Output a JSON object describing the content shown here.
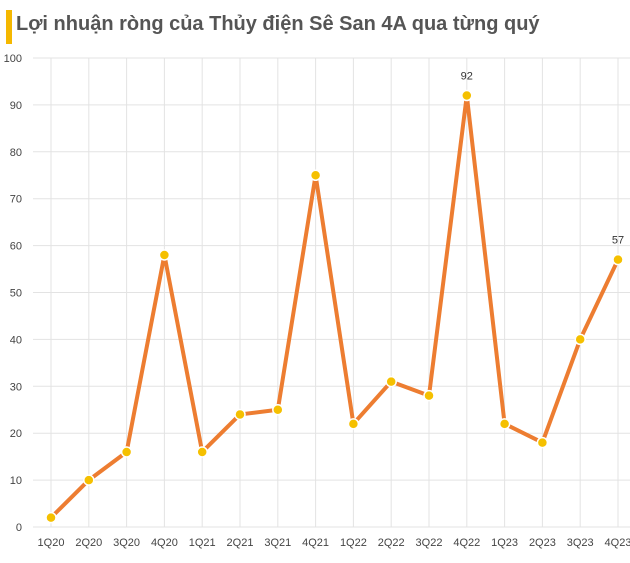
{
  "title": "Lợi nhuận ròng của Thủy điện Sê San 4A qua từng quý",
  "colors": {
    "accent_bar": "#f5b800",
    "line": "#ed7d31",
    "marker": "#f5c000",
    "marker_edge": "#ffffff",
    "grid": "#e3e3e3"
  },
  "chart_data": {
    "type": "line",
    "title": "Lợi nhuận ròng của Thủy điện Sê San 4A qua từng quý",
    "xlabel": "",
    "ylabel": "",
    "ylim": [
      0,
      100
    ],
    "yticks": [
      0,
      10,
      20,
      30,
      40,
      50,
      60,
      70,
      80,
      90,
      100
    ],
    "grid": true,
    "categories": [
      "1Q20",
      "2Q20",
      "3Q20",
      "4Q20",
      "1Q21",
      "2Q21",
      "3Q21",
      "4Q21",
      "1Q22",
      "2Q22",
      "3Q22",
      "4Q22",
      "1Q23",
      "2Q23",
      "3Q23",
      "4Q23"
    ],
    "series": [
      {
        "values": [
          2,
          10,
          16,
          58,
          16,
          24,
          25,
          75,
          22,
          31,
          28,
          92,
          22,
          18,
          40,
          57
        ]
      }
    ],
    "data_labels": [
      {
        "category": "4Q22",
        "text": "92"
      },
      {
        "category": "4Q23",
        "text": "57"
      }
    ]
  }
}
